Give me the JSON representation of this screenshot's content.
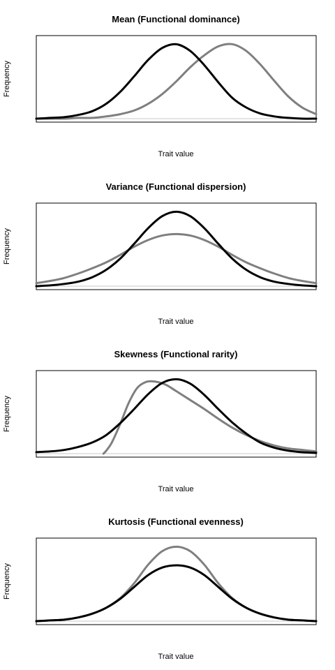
{
  "colors": {
    "series_black": "#000000",
    "series_gray": "#7f7f7f",
    "frame": "#000000",
    "baseline": "#c8c8c8"
  },
  "chart_data": [
    {
      "type": "line",
      "title": "Mean (Functional dominance)",
      "xlabel": "Trait value",
      "ylabel": "Frequency",
      "xlim": [
        0,
        1
      ],
      "ylim": [
        0,
        1.05
      ],
      "grid": false,
      "series": [
        {
          "color": "#000000",
          "x": [
            0,
            0.05,
            0.1,
            0.15,
            0.2,
            0.25,
            0.3,
            0.35,
            0.4,
            0.45,
            0.5,
            0.55,
            0.6,
            0.65,
            0.7,
            0.75,
            0.8,
            0.85,
            0.9,
            0.95,
            1
          ],
          "y": [
            0.0,
            0.01,
            0.02,
            0.05,
            0.1,
            0.2,
            0.36,
            0.57,
            0.79,
            0.95,
            1.0,
            0.91,
            0.72,
            0.49,
            0.28,
            0.15,
            0.07,
            0.03,
            0.01,
            0.0,
            0.0
          ]
        },
        {
          "color": "#7f7f7f",
          "x": [
            0,
            0.05,
            0.1,
            0.15,
            0.2,
            0.25,
            0.3,
            0.35,
            0.4,
            0.45,
            0.5,
            0.55,
            0.6,
            0.65,
            0.7,
            0.75,
            0.8,
            0.85,
            0.9,
            0.95,
            1
          ],
          "y": [
            0.0,
            0.0,
            0.0,
            0.01,
            0.01,
            0.03,
            0.06,
            0.11,
            0.2,
            0.33,
            0.5,
            0.69,
            0.85,
            0.97,
            1.0,
            0.91,
            0.73,
            0.51,
            0.3,
            0.15,
            0.06
          ]
        }
      ]
    },
    {
      "type": "line",
      "title": "Variance (Functional dispersion)",
      "xlabel": "Trait value",
      "ylabel": "Frequency",
      "xlim": [
        0,
        1
      ],
      "ylim": [
        0,
        1.05
      ],
      "grid": false,
      "series": [
        {
          "color": "#000000",
          "x": [
            0,
            0.05,
            0.1,
            0.15,
            0.2,
            0.25,
            0.3,
            0.35,
            0.4,
            0.45,
            0.5,
            0.55,
            0.6,
            0.65,
            0.7,
            0.75,
            0.8,
            0.85,
            0.9,
            0.95,
            1
          ],
          "y": [
            0.0,
            0.01,
            0.03,
            0.06,
            0.12,
            0.22,
            0.37,
            0.57,
            0.78,
            0.94,
            1.0,
            0.94,
            0.78,
            0.57,
            0.37,
            0.22,
            0.12,
            0.06,
            0.03,
            0.01,
            0.0
          ]
        },
        {
          "color": "#7f7f7f",
          "x": [
            0,
            0.05,
            0.1,
            0.15,
            0.2,
            0.25,
            0.3,
            0.35,
            0.4,
            0.45,
            0.5,
            0.55,
            0.6,
            0.65,
            0.7,
            0.75,
            0.8,
            0.85,
            0.9,
            0.95,
            1
          ],
          "y": [
            0.04,
            0.07,
            0.11,
            0.17,
            0.24,
            0.32,
            0.42,
            0.53,
            0.62,
            0.68,
            0.7,
            0.68,
            0.62,
            0.53,
            0.42,
            0.32,
            0.24,
            0.17,
            0.11,
            0.07,
            0.04
          ]
        }
      ]
    },
    {
      "type": "line",
      "title": "Skewness (Functional rarity)",
      "xlabel": "Trait value",
      "ylabel": "Frequency",
      "xlim": [
        0,
        1
      ],
      "ylim": [
        0,
        1.05
      ],
      "grid": false,
      "series": [
        {
          "color": "#000000",
          "x": [
            0,
            0.05,
            0.1,
            0.15,
            0.2,
            0.25,
            0.3,
            0.35,
            0.4,
            0.45,
            0.5,
            0.55,
            0.6,
            0.65,
            0.7,
            0.75,
            0.8,
            0.85,
            0.9,
            0.95,
            1
          ],
          "y": [
            0.02,
            0.03,
            0.05,
            0.09,
            0.15,
            0.25,
            0.41,
            0.6,
            0.8,
            0.95,
            1.0,
            0.94,
            0.79,
            0.6,
            0.42,
            0.27,
            0.15,
            0.08,
            0.04,
            0.02,
            0.01
          ]
        },
        {
          "color": "#7f7f7f",
          "x": [
            0.24,
            0.25,
            0.27,
            0.3,
            0.33,
            0.36,
            0.39,
            0.42,
            0.46,
            0.5,
            0.55,
            0.6,
            0.65,
            0.7,
            0.75,
            0.8,
            0.85,
            0.9,
            0.95,
            1
          ],
          "y": [
            0.0,
            0.04,
            0.15,
            0.4,
            0.68,
            0.88,
            0.96,
            0.97,
            0.93,
            0.84,
            0.72,
            0.6,
            0.47,
            0.35,
            0.25,
            0.17,
            0.11,
            0.07,
            0.05,
            0.03
          ]
        }
      ]
    },
    {
      "type": "line",
      "title": "Kurtosis (Functional evenness)",
      "xlabel": "Trait value",
      "ylabel": "Frequency",
      "xlim": [
        0,
        1
      ],
      "ylim": [
        0,
        1.05
      ],
      "grid": false,
      "series": [
        {
          "color": "#000000",
          "x": [
            0,
            0.05,
            0.1,
            0.15,
            0.2,
            0.25,
            0.3,
            0.35,
            0.4,
            0.45,
            0.5,
            0.55,
            0.6,
            0.65,
            0.7,
            0.75,
            0.8,
            0.85,
            0.9,
            0.95,
            1
          ],
          "y": [
            0.0,
            0.01,
            0.02,
            0.05,
            0.1,
            0.18,
            0.3,
            0.46,
            0.62,
            0.72,
            0.75,
            0.72,
            0.62,
            0.46,
            0.3,
            0.18,
            0.1,
            0.05,
            0.02,
            0.01,
            0.0
          ]
        },
        {
          "color": "#7f7f7f",
          "x": [
            0,
            0.05,
            0.1,
            0.15,
            0.2,
            0.25,
            0.3,
            0.35,
            0.4,
            0.45,
            0.5,
            0.55,
            0.6,
            0.65,
            0.7,
            0.75,
            0.8,
            0.85,
            0.9,
            0.95,
            1
          ],
          "y": [
            0.0,
            0.01,
            0.02,
            0.05,
            0.1,
            0.18,
            0.31,
            0.51,
            0.76,
            0.94,
            1.0,
            0.94,
            0.76,
            0.51,
            0.31,
            0.18,
            0.1,
            0.05,
            0.02,
            0.01,
            0.0
          ]
        }
      ]
    }
  ]
}
